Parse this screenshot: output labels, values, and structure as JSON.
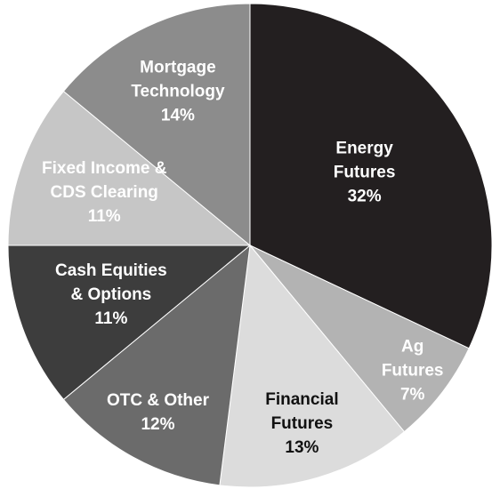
{
  "chart_data": {
    "type": "pie",
    "categories": [
      [
        "Energy",
        "Futures"
      ],
      [
        "Ag",
        "Futures"
      ],
      [
        "Financial",
        "Futures"
      ],
      [
        "OTC & Other"
      ],
      [
        "Cash Equities",
        "& Options"
      ],
      [
        "Fixed Income &",
        "CDS Clearing"
      ],
      [
        "Mortgage",
        "Technology"
      ]
    ],
    "values": [
      32,
      7,
      13,
      12,
      11,
      11,
      14
    ],
    "value_labels": [
      "32%",
      "7%",
      "13%",
      "12%",
      "11%",
      "11%",
      "14%"
    ],
    "colors": [
      "#231f20",
      "#b3b3b3",
      "#dcdcdc",
      "#6b6b6b",
      "#3d3d3d",
      "#c6c6c6",
      "#8c8c8c"
    ],
    "label_colors": [
      "#ffffff",
      "#ffffff",
      "#111111",
      "#ffffff",
      "#ffffff",
      "#ffffff",
      "#ffffff"
    ]
  }
}
